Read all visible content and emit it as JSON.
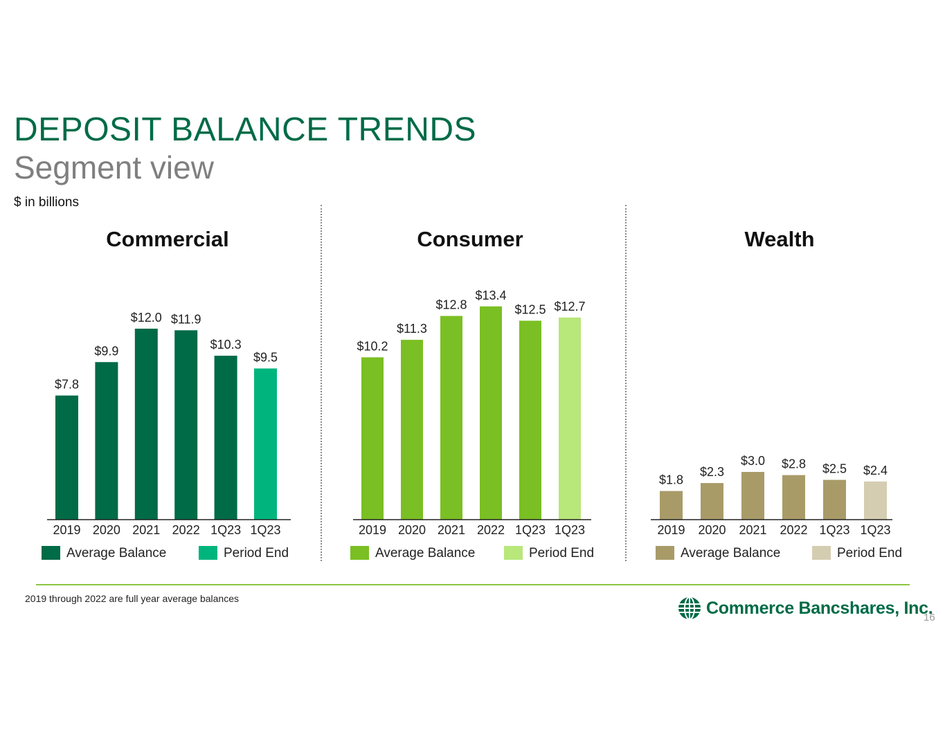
{
  "header": {
    "title": "DEPOSIT BALANCE TRENDS",
    "subtitle": "Segment view",
    "units": "$ in billions"
  },
  "chart_data": [
    {
      "type": "bar",
      "title": "Commercial",
      "categories": [
        "2019",
        "2020",
        "2021",
        "2022",
        "1Q23",
        "1Q23"
      ],
      "values": [
        7.8,
        9.9,
        12.0,
        11.9,
        10.3,
        9.5
      ],
      "value_labels": [
        "$7.8",
        "$9.9",
        "$12.0",
        "$11.9",
        "$10.3",
        "$9.5"
      ],
      "bar_series": [
        "Average Balance",
        "Average Balance",
        "Average Balance",
        "Average Balance",
        "Average Balance",
        "Period End"
      ],
      "legend": [
        {
          "name": "Average Balance",
          "color": "#006b47"
        },
        {
          "name": "Period End",
          "color": "#00b57d"
        }
      ],
      "ylim": [
        0,
        15
      ],
      "grid": false,
      "legend_position": "bottom"
    },
    {
      "type": "bar",
      "title": "Consumer",
      "categories": [
        "2019",
        "2020",
        "2021",
        "2022",
        "1Q23",
        "1Q23"
      ],
      "values": [
        10.2,
        11.3,
        12.8,
        13.4,
        12.5,
        12.7
      ],
      "value_labels": [
        "$10.2",
        "$11.3",
        "$12.8",
        "$13.4",
        "$12.5",
        "$12.7"
      ],
      "bar_series": [
        "Average Balance",
        "Average Balance",
        "Average Balance",
        "Average Balance",
        "Average Balance",
        "Period End"
      ],
      "legend": [
        {
          "name": "Average Balance",
          "color": "#7abf23"
        },
        {
          "name": "Period End",
          "color": "#b8e77a"
        }
      ],
      "ylim": [
        0,
        15
      ],
      "grid": false,
      "legend_position": "bottom"
    },
    {
      "type": "bar",
      "title": "Wealth",
      "categories": [
        "2019",
        "2020",
        "2021",
        "2022",
        "1Q23",
        "1Q23"
      ],
      "values": [
        1.8,
        2.3,
        3.0,
        2.8,
        2.5,
        2.4
      ],
      "value_labels": [
        "$1.8",
        "$2.3",
        "$3.0",
        "$2.8",
        "$2.5",
        "$2.4"
      ],
      "bar_series": [
        "Average Balance",
        "Average Balance",
        "Average Balance",
        "Average Balance",
        "Average Balance",
        "Period End"
      ],
      "legend": [
        {
          "name": "Average Balance",
          "color": "#a89b68"
        },
        {
          "name": "Period End",
          "color": "#d5cdb1"
        }
      ],
      "ylim": [
        0,
        15
      ],
      "grid": false,
      "legend_position": "bottom"
    }
  ],
  "footer": {
    "footnote": "2019 through 2022 are full year average balances",
    "logo_name": "Commerce Bancshares, Inc.",
    "page_number": "16",
    "accent_color": "#8dc640",
    "logo_icon": "globe-icon"
  }
}
